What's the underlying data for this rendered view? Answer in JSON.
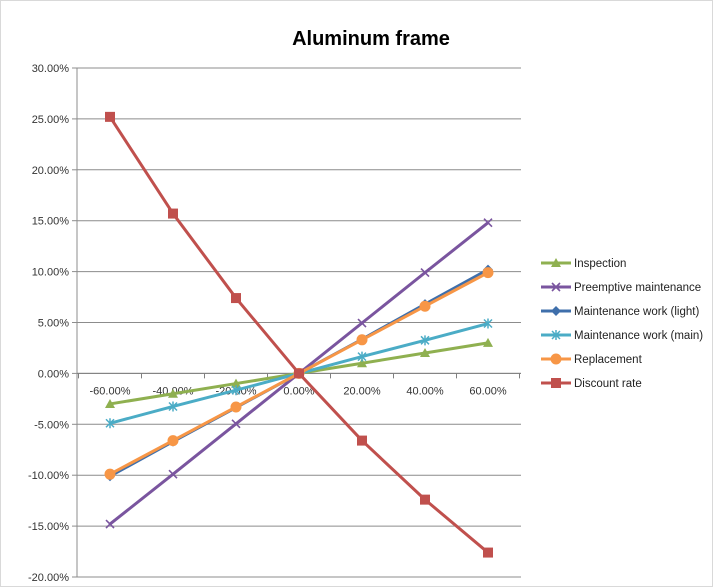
{
  "chart_data": {
    "type": "line",
    "title": "Aluminum frame",
    "x": [
      -60,
      -40,
      -20,
      0,
      20,
      40,
      60
    ],
    "x_tick_labels": [
      "-60.00%",
      "-40.00%",
      "-20.00%",
      "0.00%",
      "20.00%",
      "40.00%",
      "60.00%"
    ],
    "y_tick_labels": [
      "30.00%",
      "25.00%",
      "20.00%",
      "15.00%",
      "10.00%",
      "5.00%",
      "0.00%",
      "-5.00%",
      "-10.00%",
      "-15.00%",
      "-20.00%"
    ],
    "y_ticks": [
      30,
      25,
      20,
      15,
      10,
      5,
      0,
      -5,
      -10,
      -15,
      -20
    ],
    "ylim": [
      -20,
      30
    ],
    "xlim": [
      -60,
      60
    ],
    "grid": "horizontal",
    "legend_position": "right",
    "series": [
      {
        "name": "Inspection",
        "color": "#8fb050",
        "marker": "triangle",
        "values": [
          -3.0,
          -2.0,
          -1.0,
          0.0,
          1.0,
          2.0,
          3.0
        ]
      },
      {
        "name": "Preemptive maintenance",
        "color": "#7a559f",
        "marker": "x",
        "values": [
          -14.8,
          -9.9,
          -4.95,
          0.0,
          4.95,
          9.9,
          14.8
        ]
      },
      {
        "name": "Maintenance work (light)",
        "color": "#3f6fab",
        "marker": "diamond",
        "values": [
          -10.1,
          -6.7,
          -3.35,
          0.0,
          3.35,
          6.8,
          10.2
        ]
      },
      {
        "name": "Maintenance work (main)",
        "color": "#4bacc6",
        "marker": "star",
        "values": [
          -4.9,
          -3.25,
          -1.65,
          0.0,
          1.65,
          3.25,
          4.9
        ]
      },
      {
        "name": "Replacement",
        "color": "#f79646",
        "marker": "circle",
        "values": [
          -9.9,
          -6.6,
          -3.3,
          0.0,
          3.3,
          6.6,
          9.9
        ]
      },
      {
        "name": "Discount rate",
        "color": "#c0504d",
        "marker": "square",
        "values": [
          25.2,
          15.7,
          7.4,
          0.0,
          -6.6,
          -12.4,
          -17.6
        ]
      }
    ]
  }
}
